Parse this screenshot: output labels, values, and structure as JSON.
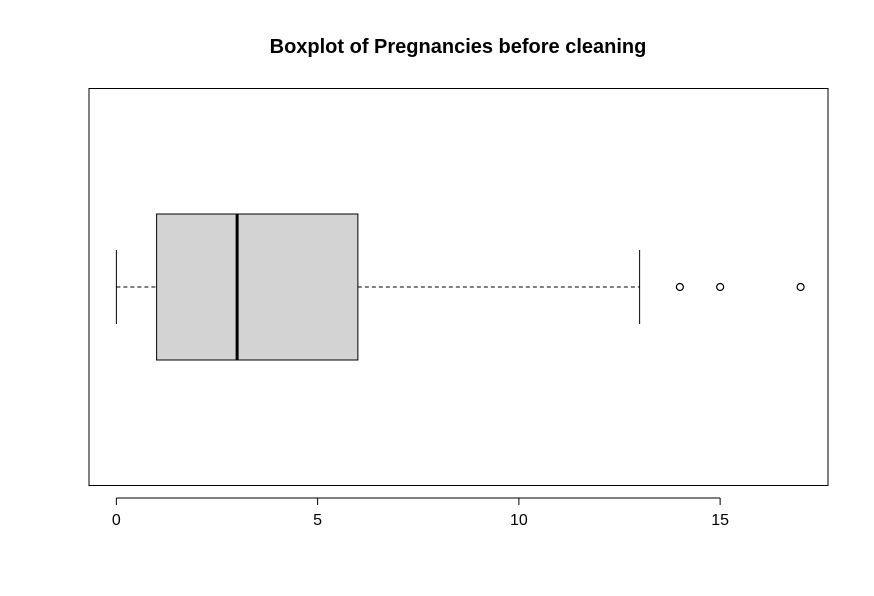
{
  "chart_data": {
    "type": "boxplot",
    "orientation": "horizontal",
    "title": "Boxplot of Pregnancies before cleaning",
    "xlabel": "",
    "ylabel": "",
    "xlim": [
      -0.68,
      17.68
    ],
    "x_ticks": [
      0,
      5,
      10,
      15
    ],
    "x_tick_labels": [
      "0",
      "5",
      "10",
      "15"
    ],
    "grid": false,
    "box": {
      "whisker_low": 0,
      "q1": 1,
      "median": 3,
      "q3": 6,
      "whisker_high": 13,
      "outliers": [
        14,
        15,
        17
      ]
    },
    "colors": {
      "box_fill": "#d3d3d3",
      "stroke": "#000000"
    }
  }
}
